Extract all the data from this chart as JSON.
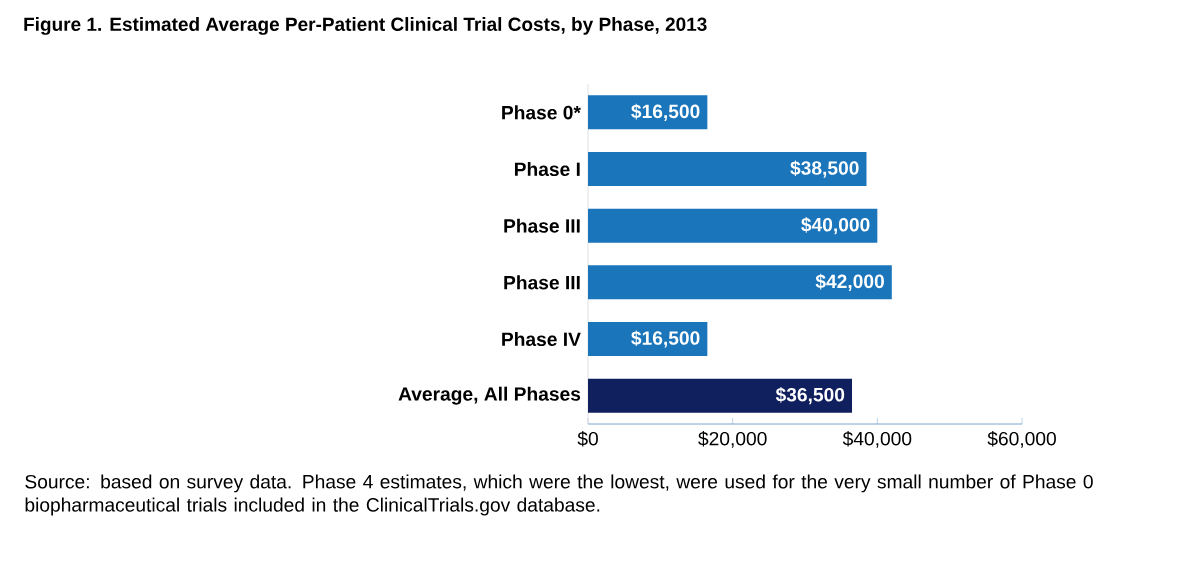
{
  "chart_data": {
    "type": "bar",
    "orientation": "horizontal",
    "title": "Figure 1. Estimated Average Per-Patient Clinical Trial Costs, by Phase, 2013",
    "categories": [
      "Phase 0*",
      "Phase I",
      "Phase III",
      "Phase III",
      "Phase IV",
      "Average, All Phases"
    ],
    "values": [
      16500,
      38500,
      40000,
      42000,
      16500,
      36500
    ],
    "colors": [
      "#1a75bb",
      "#1a75bb",
      "#1a75bb",
      "#1a75bb",
      "#1a75bb",
      "#101f5e"
    ],
    "value_labels": [
      "$16,500",
      "$38,500",
      "$40,000",
      "$42,000",
      "$16,500",
      "$36,500"
    ],
    "xlim": [
      0,
      60000
    ],
    "xticks": [
      {
        "value": 0,
        "label": "$0"
      },
      {
        "value": 20000,
        "label": "$20,000"
      },
      {
        "value": 40000,
        "label": "$40,000"
      },
      {
        "value": 60000,
        "label": "$60,000"
      }
    ],
    "annotations": [
      "Source:  based on survey data. Phase 4 estimates, which were the lowest, were used for the very small number of Phase 0 biopharmaceutical trials included in the ClinicalTrials.gov database."
    ]
  }
}
